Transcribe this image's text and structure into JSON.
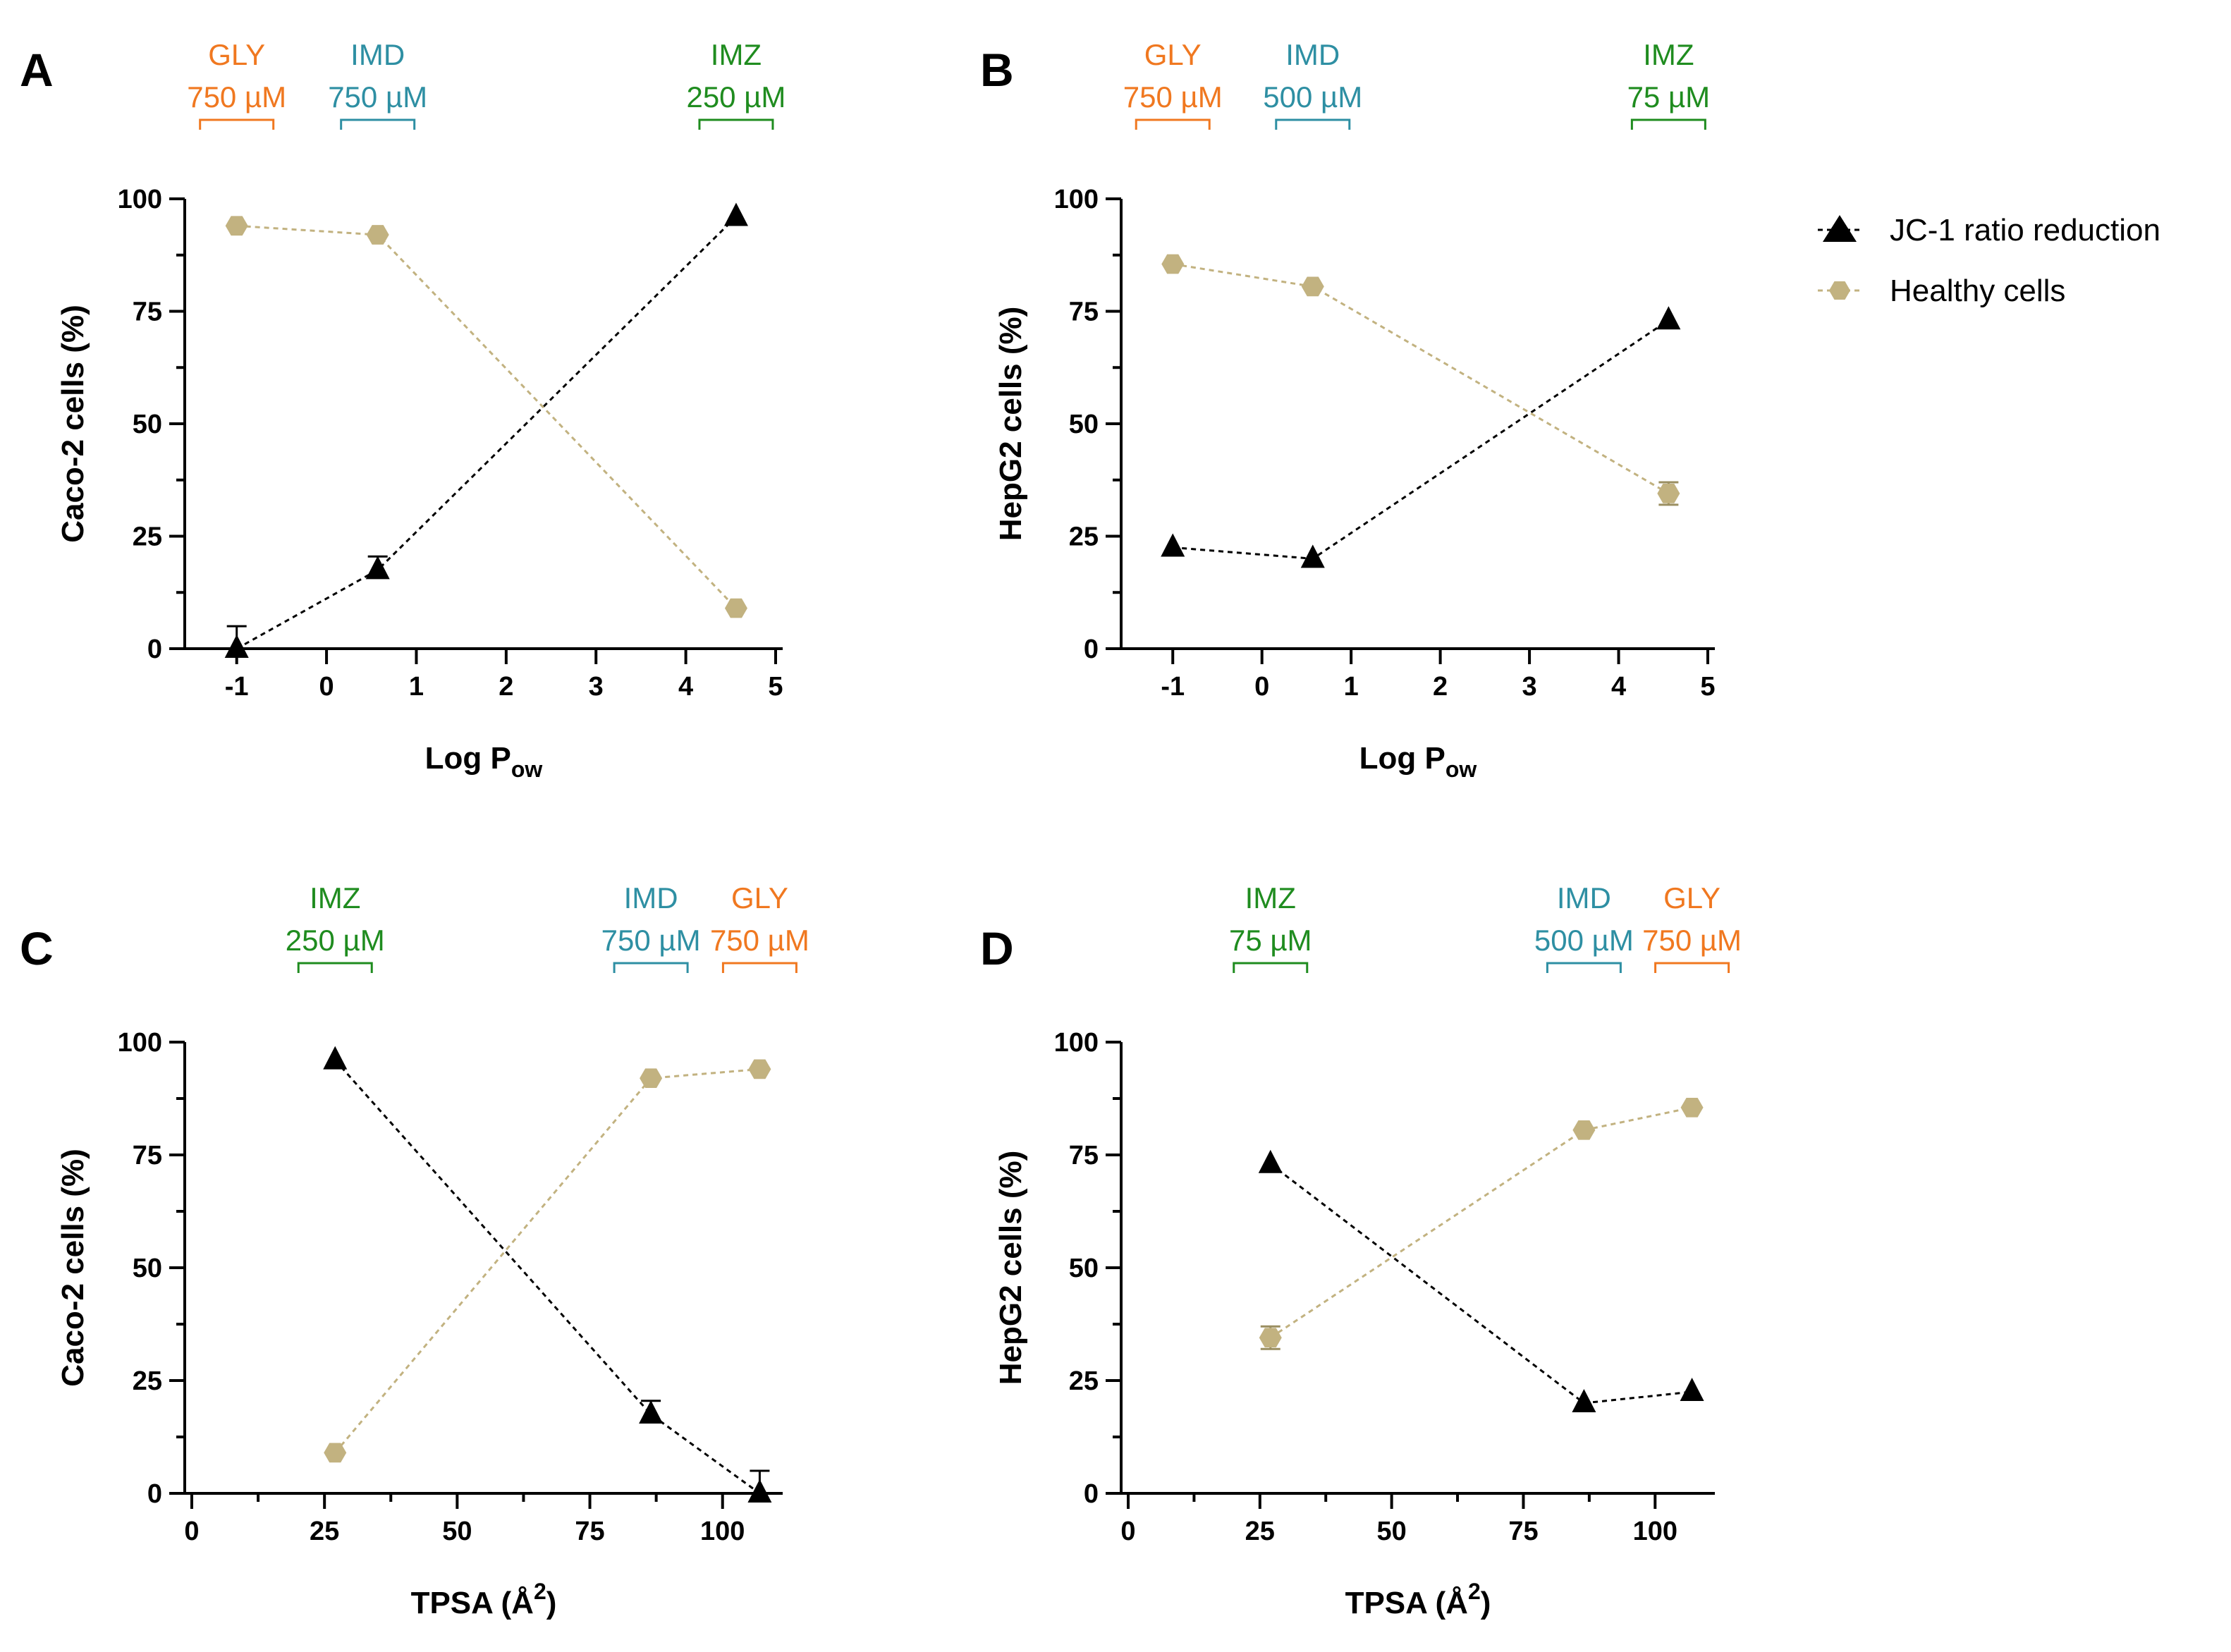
{
  "legend": {
    "items": [
      {
        "label": "JC-1 ratio reduction",
        "marker": "triangle",
        "color": "#000000"
      },
      {
        "label": "Healthy cells",
        "marker": "hexagon",
        "color": "#C2B280"
      }
    ]
  },
  "colors": {
    "jc1": "#000000",
    "healthy": "#C2B280",
    "GLY": "#F07820",
    "IMD": "#2E8FA3",
    "IMZ": "#1F8C1F"
  },
  "chart_data": [
    {
      "panel": "A",
      "type": "line",
      "xlabel_main": "Log P",
      "xlabel_sub": "ow",
      "xlabel_suffix": "",
      "xlabel_sup": "",
      "ylabel": "Caco-2 cells (%)",
      "xlim": [
        -1.5,
        5
      ],
      "ylim": [
        0,
        100
      ],
      "xticks": [
        -1,
        0,
        1,
        2,
        3,
        4,
        5
      ],
      "yticks": [
        0,
        25,
        50,
        75,
        100
      ],
      "annotations": [
        {
          "compound": "GLY",
          "conc": "750 µM",
          "x": -1
        },
        {
          "compound": "IMD",
          "conc": "750 µM",
          "x": 0.57
        },
        {
          "compound": "IMZ",
          "conc": "250 µM",
          "x": 4.56
        }
      ],
      "series": [
        {
          "name": "JC-1 ratio reduction",
          "x": [
            -1,
            0.57,
            4.56
          ],
          "values": [
            0,
            17.5,
            96
          ],
          "err": [
            5,
            3,
            0
          ]
        },
        {
          "name": "Healthy cells",
          "x": [
            -1,
            0.57,
            4.56
          ],
          "values": [
            94,
            92,
            9
          ],
          "err": [
            0,
            0,
            0
          ]
        }
      ]
    },
    {
      "panel": "B",
      "type": "line",
      "xlabel_main": "Log P",
      "xlabel_sub": "ow",
      "xlabel_suffix": "",
      "xlabel_sup": "",
      "ylabel": "HepG2 cells (%)",
      "xlim": [
        -1.5,
        5
      ],
      "ylim": [
        0,
        100
      ],
      "xticks": [
        -1,
        0,
        1,
        2,
        3,
        4,
        5
      ],
      "yticks": [
        0,
        25,
        50,
        75,
        100
      ],
      "annotations": [
        {
          "compound": "GLY",
          "conc": "750 µM",
          "x": -1
        },
        {
          "compound": "IMD",
          "conc": "500 µM",
          "x": 0.57
        },
        {
          "compound": "IMZ",
          "conc": "75 µM",
          "x": 4.56
        }
      ],
      "series": [
        {
          "name": "JC-1 ratio reduction",
          "x": [
            -1,
            0.57,
            4.56
          ],
          "values": [
            22.5,
            20,
            73
          ],
          "err": [
            0,
            0,
            0
          ]
        },
        {
          "name": "Healthy cells",
          "x": [
            -1,
            0.57,
            4.56
          ],
          "values": [
            85.5,
            80.5,
            34.5
          ],
          "err": [
            0,
            0,
            2.5
          ]
        }
      ]
    },
    {
      "panel": "C",
      "type": "line",
      "xlabel_main": "TPSA (Å",
      "xlabel_sub": "",
      "xlabel_suffix": ")",
      "xlabel_sup": "2",
      "ylabel": "Caco-2 cells (%)",
      "xlim": [
        0,
        110
      ],
      "ylim": [
        0,
        100
      ],
      "xticks": [
        0,
        25,
        50,
        75,
        100
      ],
      "xminor": [
        12.5,
        37.5,
        62.5,
        87.5
      ],
      "yticks": [
        0,
        25,
        50,
        75,
        100
      ],
      "annotations": [
        {
          "compound": "IMZ",
          "conc": "250 µM",
          "x": 27
        },
        {
          "compound": "IMD",
          "conc": "750 µM",
          "x": 86.5
        },
        {
          "compound": "GLY",
          "conc": "750 µM",
          "x": 107
        }
      ],
      "series": [
        {
          "name": "JC-1 ratio reduction",
          "x": [
            27,
            86.5,
            107
          ],
          "values": [
            96,
            17.5,
            0
          ],
          "err": [
            0,
            3,
            5
          ]
        },
        {
          "name": "Healthy cells",
          "x": [
            27,
            86.5,
            107
          ],
          "values": [
            9,
            92,
            94
          ],
          "err": [
            0,
            0,
            0
          ]
        }
      ]
    },
    {
      "panel": "D",
      "type": "line",
      "xlabel_main": "TPSA (Å",
      "xlabel_sub": "",
      "xlabel_suffix": ")",
      "xlabel_sup": "2",
      "ylabel": "HepG2 cells (%)",
      "xlim": [
        0,
        110
      ],
      "ylim": [
        0,
        100
      ],
      "xticks": [
        0,
        25,
        50,
        75,
        100
      ],
      "xminor": [
        12.5,
        37.5,
        62.5,
        87.5
      ],
      "yticks": [
        0,
        25,
        50,
        75,
        100
      ],
      "annotations": [
        {
          "compound": "IMZ",
          "conc": "75 µM",
          "x": 27
        },
        {
          "compound": "IMD",
          "conc": "500 µM",
          "x": 86.5
        },
        {
          "compound": "GLY",
          "conc": "750 µM",
          "x": 107
        }
      ],
      "series": [
        {
          "name": "JC-1 ratio reduction",
          "x": [
            27,
            86.5,
            107
          ],
          "values": [
            73,
            20,
            22.5
          ],
          "err": [
            0,
            0,
            0
          ]
        },
        {
          "name": "Healthy cells",
          "x": [
            27,
            86.5,
            107
          ],
          "values": [
            34.5,
            80.5,
            85.5
          ],
          "err": [
            2.5,
            0,
            0
          ]
        }
      ]
    }
  ]
}
